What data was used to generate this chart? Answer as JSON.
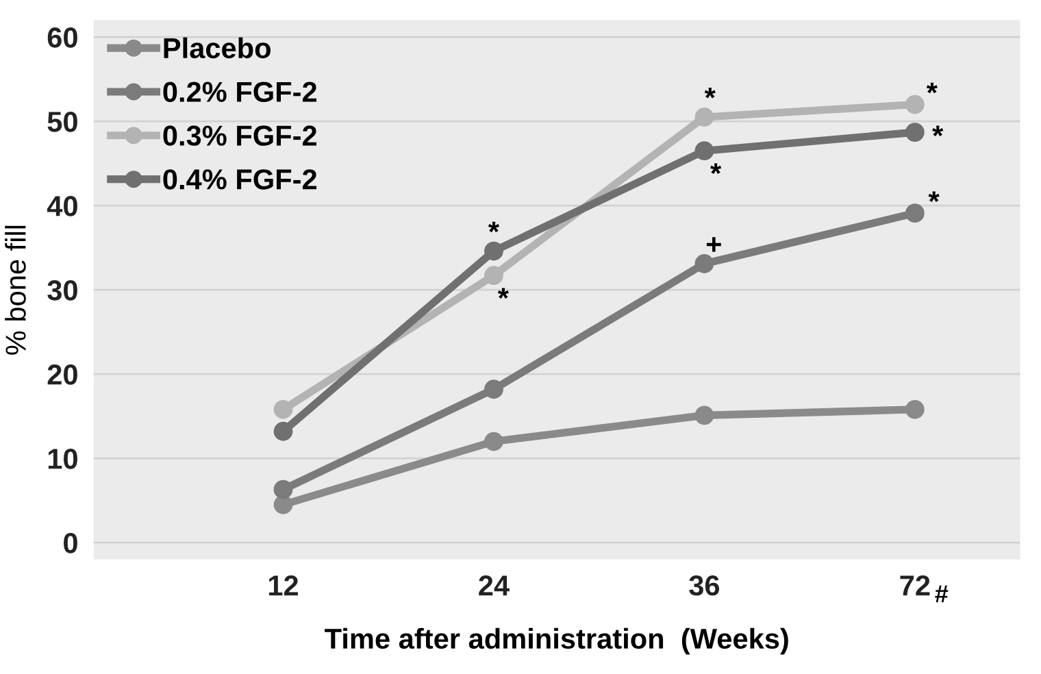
{
  "chart_data": {
    "type": "line",
    "xlabel": "Time after administration  (Weeks)",
    "ylabel": "% bone fill",
    "categories": [
      "12",
      "24",
      "36",
      "72"
    ],
    "series": [
      {
        "name": "Placebo",
        "color": "#8a8a8a",
        "values": [
          4.5,
          12.0,
          15.1,
          15.8
        ]
      },
      {
        "name": "0.2% FGF-2",
        "color": "#7b7b7b",
        "values": [
          6.3,
          18.2,
          33.1,
          39.1
        ]
      },
      {
        "name": "0.3% FGF-2",
        "color": "#b3b3b3",
        "values": [
          15.8,
          31.7,
          50.5,
          52.0
        ]
      },
      {
        "name": "0.4% FGF-2",
        "color": "#707070",
        "values": [
          13.2,
          34.6,
          46.5,
          48.7
        ]
      }
    ],
    "ylim": [
      -2,
      62
    ],
    "yticks": [
      0,
      10,
      20,
      30,
      40,
      50,
      60
    ],
    "grid": "y",
    "legend": "top left",
    "marker": "circle",
    "line_style": "solid",
    "annotations": [
      {
        "text": "*",
        "x": "24",
        "y": 34.6
      },
      {
        "text": "*",
        "x": "24",
        "y": 31.7
      },
      {
        "text": "*",
        "x": "36",
        "y": 50.5
      },
      {
        "text": "*",
        "x": "36",
        "y": 46.5
      },
      {
        "text": "+",
        "x": "36",
        "y": 33.1
      },
      {
        "text": "*",
        "x": "72",
        "y": 52.0
      },
      {
        "text": "*",
        "x": "72",
        "y": 48.7
      },
      {
        "text": "*",
        "x": "72",
        "y": 39.1
      },
      "#"
    ]
  }
}
